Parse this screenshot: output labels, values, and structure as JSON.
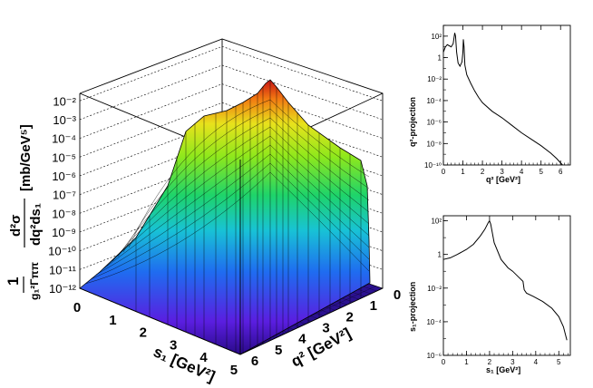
{
  "chart_data": [
    {
      "type": "surface3d",
      "title": "",
      "zlabel": {
        "prefix": "1",
        "prefix_den": "g₁²Γππ",
        "frac_num": "d²σ",
        "frac_den": "dq²ds₁",
        "units": "[mb/GeV⁵]"
      },
      "xlabel": "s₁ [GeV²]",
      "ylabel": "q² [GeV²]",
      "xlim": [
        0,
        5.3
      ],
      "ylim": [
        0,
        6
      ],
      "zlim_log10": [
        -12,
        -1.6
      ],
      "x_ticks": [
        "0",
        "1",
        "2",
        "3",
        "4",
        "5"
      ],
      "y_ticks": [
        "6",
        "5",
        "4",
        "3",
        "2",
        "1",
        "0"
      ],
      "z_ticks": [
        "10⁻¹²",
        "10⁻¹¹",
        "10⁻¹⁰",
        "10⁻⁹",
        "10⁻⁸",
        "10⁻⁷",
        "10⁻⁶",
        "10⁻⁵",
        "10⁻⁴",
        "10⁻³",
        "10⁻²"
      ],
      "peak": {
        "s1": 2.0,
        "q2": 0.5,
        "log10_value": -1.8
      },
      "colormap": "rainbow (violet low → red high)"
    },
    {
      "type": "line",
      "scale": "log-y",
      "ylabel": "q²-projection",
      "xlabel": "q² [GeV²]",
      "xlim": [
        0,
        6.5
      ],
      "ylim_log10": [
        -10,
        3
      ],
      "x_ticks": [
        "0",
        "1",
        "2",
        "3",
        "4",
        "5",
        "6"
      ],
      "y_ticks": [
        "10⁻¹⁰",
        "10⁻⁸",
        "10⁻⁶",
        "10⁻⁴",
        "10⁻²",
        "1",
        "10²"
      ],
      "series": [
        {
          "name": "q2-projection",
          "x": [
            0.0,
            0.1,
            0.2,
            0.3,
            0.4,
            0.5,
            0.58,
            0.62,
            0.68,
            0.75,
            0.85,
            0.95,
            1.0,
            1.02,
            1.06,
            1.1,
            1.2,
            1.4,
            1.6,
            1.8,
            2.0,
            2.5,
            3.0,
            3.5,
            4.0,
            4.5,
            5.0,
            5.5,
            5.8,
            6.0,
            6.1
          ],
          "log10_y": [
            0.5,
            1.0,
            1.2,
            1.1,
            1.0,
            1.3,
            2.3,
            2.0,
            0.5,
            -0.5,
            -0.8,
            -0.4,
            0.5,
            1.7,
            1.0,
            -0.7,
            -1.6,
            -2.4,
            -3.1,
            -3.7,
            -4.2,
            -5.0,
            -5.6,
            -6.3,
            -7.0,
            -7.6,
            -8.2,
            -8.9,
            -9.4,
            -9.8,
            -10.0
          ]
        }
      ]
    },
    {
      "type": "line",
      "scale": "log-y",
      "ylabel": "s₁-projection",
      "xlabel": "s₁ [GeV²]",
      "xlim": [
        0,
        5.5
      ],
      "ylim_log10": [
        -6,
        2.3
      ],
      "x_ticks": [
        "0",
        "1",
        "2",
        "3",
        "4",
        "5"
      ],
      "y_ticks": [
        "10⁻⁶",
        "10⁻⁴",
        "10⁻²",
        "1",
        "10²"
      ],
      "series": [
        {
          "name": "s1-projection",
          "x": [
            0.0,
            0.3,
            0.6,
            1.0,
            1.3,
            1.6,
            1.8,
            1.95,
            2.0,
            2.05,
            2.2,
            2.5,
            2.8,
            3.0,
            3.3,
            3.45,
            3.5,
            3.6,
            3.9,
            4.3,
            4.7,
            5.0,
            5.2,
            5.35
          ],
          "log10_y": [
            -0.3,
            -0.2,
            0.0,
            0.3,
            0.6,
            1.1,
            1.5,
            1.9,
            2.0,
            1.8,
            0.7,
            -0.3,
            -0.8,
            -1.0,
            -1.4,
            -1.6,
            -2.1,
            -2.3,
            -2.5,
            -2.8,
            -3.2,
            -3.7,
            -4.3,
            -5.1
          ]
        }
      ]
    }
  ]
}
